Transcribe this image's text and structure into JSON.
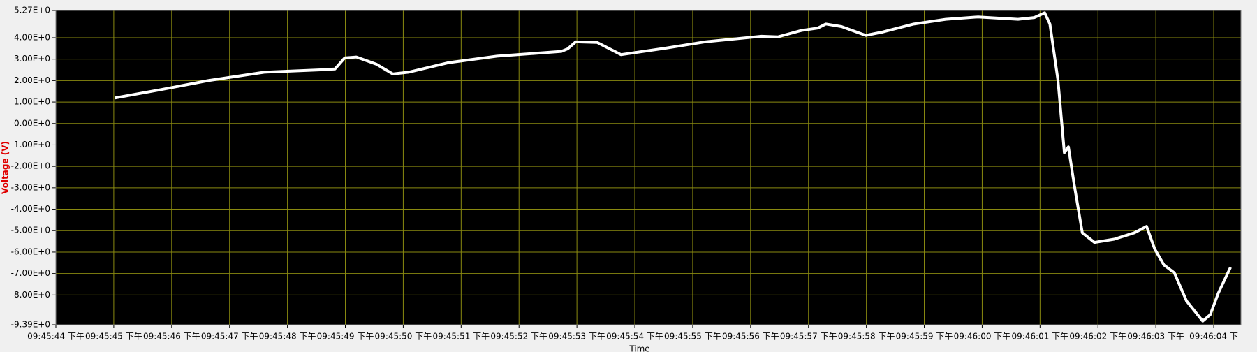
{
  "chart_data": {
    "type": "line",
    "ylabel": "Voltage (V)",
    "xlabel": "Time",
    "xlim": [
      0,
      20.47
    ],
    "ylim": [
      -9.39,
      5.27
    ],
    "xticks": [
      {
        "value": 0,
        "label": "09:45:44 下午"
      },
      {
        "value": 1,
        "label": "09:45:45 下午"
      },
      {
        "value": 2,
        "label": "09:45:46 下午"
      },
      {
        "value": 3,
        "label": "09:45:47 下午"
      },
      {
        "value": 4,
        "label": "09:45:48 下午"
      },
      {
        "value": 5,
        "label": "09:45:49 下午"
      },
      {
        "value": 6,
        "label": "09:45:50 下午"
      },
      {
        "value": 7,
        "label": "09:45:51 下午"
      },
      {
        "value": 8,
        "label": "09:45:52 下午"
      },
      {
        "value": 9,
        "label": "09:45:53 下午"
      },
      {
        "value": 10,
        "label": "09:45:54 下午"
      },
      {
        "value": 11,
        "label": "09:45:55 下午"
      },
      {
        "value": 12,
        "label": "09:45:56 下午"
      },
      {
        "value": 13,
        "label": "09:45:57 下午"
      },
      {
        "value": 14,
        "label": "09:45:58 下午"
      },
      {
        "value": 15,
        "label": "09:45:59 下午"
      },
      {
        "value": 16,
        "label": "09:46:00 下午"
      },
      {
        "value": 17,
        "label": "09:46:01 下午"
      },
      {
        "value": 18,
        "label": "09:46:02 下午"
      },
      {
        "value": 19,
        "label": "09:46:03 下午"
      },
      {
        "value": 20,
        "label": "09:46:04 下"
      }
    ],
    "yticks": [
      {
        "value": 5.27,
        "label": "5.27E+0"
      },
      {
        "value": 4,
        "label": "4.00E+0"
      },
      {
        "value": 3,
        "label": "3.00E+0"
      },
      {
        "value": 2,
        "label": "2.00E+0"
      },
      {
        "value": 1,
        "label": "1.00E+0"
      },
      {
        "value": 0,
        "label": "0.00E+0"
      },
      {
        "value": -1,
        "label": "-1.00E+0"
      },
      {
        "value": -2,
        "label": "-2.00E+0"
      },
      {
        "value": -3,
        "label": "-3.00E+0"
      },
      {
        "value": -4,
        "label": "-4.00E+0"
      },
      {
        "value": -5,
        "label": "-5.00E+0"
      },
      {
        "value": -6,
        "label": "-6.00E+0"
      },
      {
        "value": -7,
        "label": "-7.00E+0"
      },
      {
        "value": -8,
        "label": "-8.00E+0"
      },
      {
        "value": -9.39,
        "label": "-9.39E+0"
      }
    ],
    "grid": true,
    "grid_color": "#8a8a10",
    "background": "#000000",
    "series": [
      {
        "color": "#ffffff",
        "x": [
          1.02,
          1.8,
          2.63,
          3.6,
          4.57,
          4.82,
          4.99,
          5.19,
          5.54,
          5.82,
          6.09,
          6.79,
          7.62,
          8.73,
          8.84,
          8.98,
          9.35,
          9.76,
          10.53,
          11.22,
          12.19,
          12.47,
          12.88,
          13.16,
          13.3,
          13.57,
          13.99,
          14.27,
          14.82,
          15.37,
          15.93,
          16.62,
          16.9,
          17.08,
          17.17,
          17.31,
          17.42,
          17.49,
          17.59,
          17.73,
          17.94,
          18.28,
          18.63,
          18.84,
          18.98,
          19.14,
          19.32,
          19.53,
          19.81,
          19.94,
          20.08,
          20.29
        ],
        "values": [
          1.19,
          1.57,
          2.0,
          2.39,
          2.5,
          2.54,
          3.06,
          3.1,
          2.76,
          2.31,
          2.39,
          2.84,
          3.14,
          3.36,
          3.48,
          3.81,
          3.78,
          3.21,
          3.51,
          3.81,
          4.07,
          4.04,
          4.34,
          4.45,
          4.64,
          4.52,
          4.11,
          4.26,
          4.64,
          4.86,
          4.97,
          4.86,
          4.94,
          5.16,
          4.64,
          2.01,
          -1.36,
          -1.09,
          -2.85,
          -5.1,
          -5.55,
          -5.4,
          -5.1,
          -4.8,
          -5.85,
          -6.6,
          -6.97,
          -8.28,
          -9.22,
          -8.92,
          -7.91,
          -6.71
        ]
      }
    ]
  }
}
